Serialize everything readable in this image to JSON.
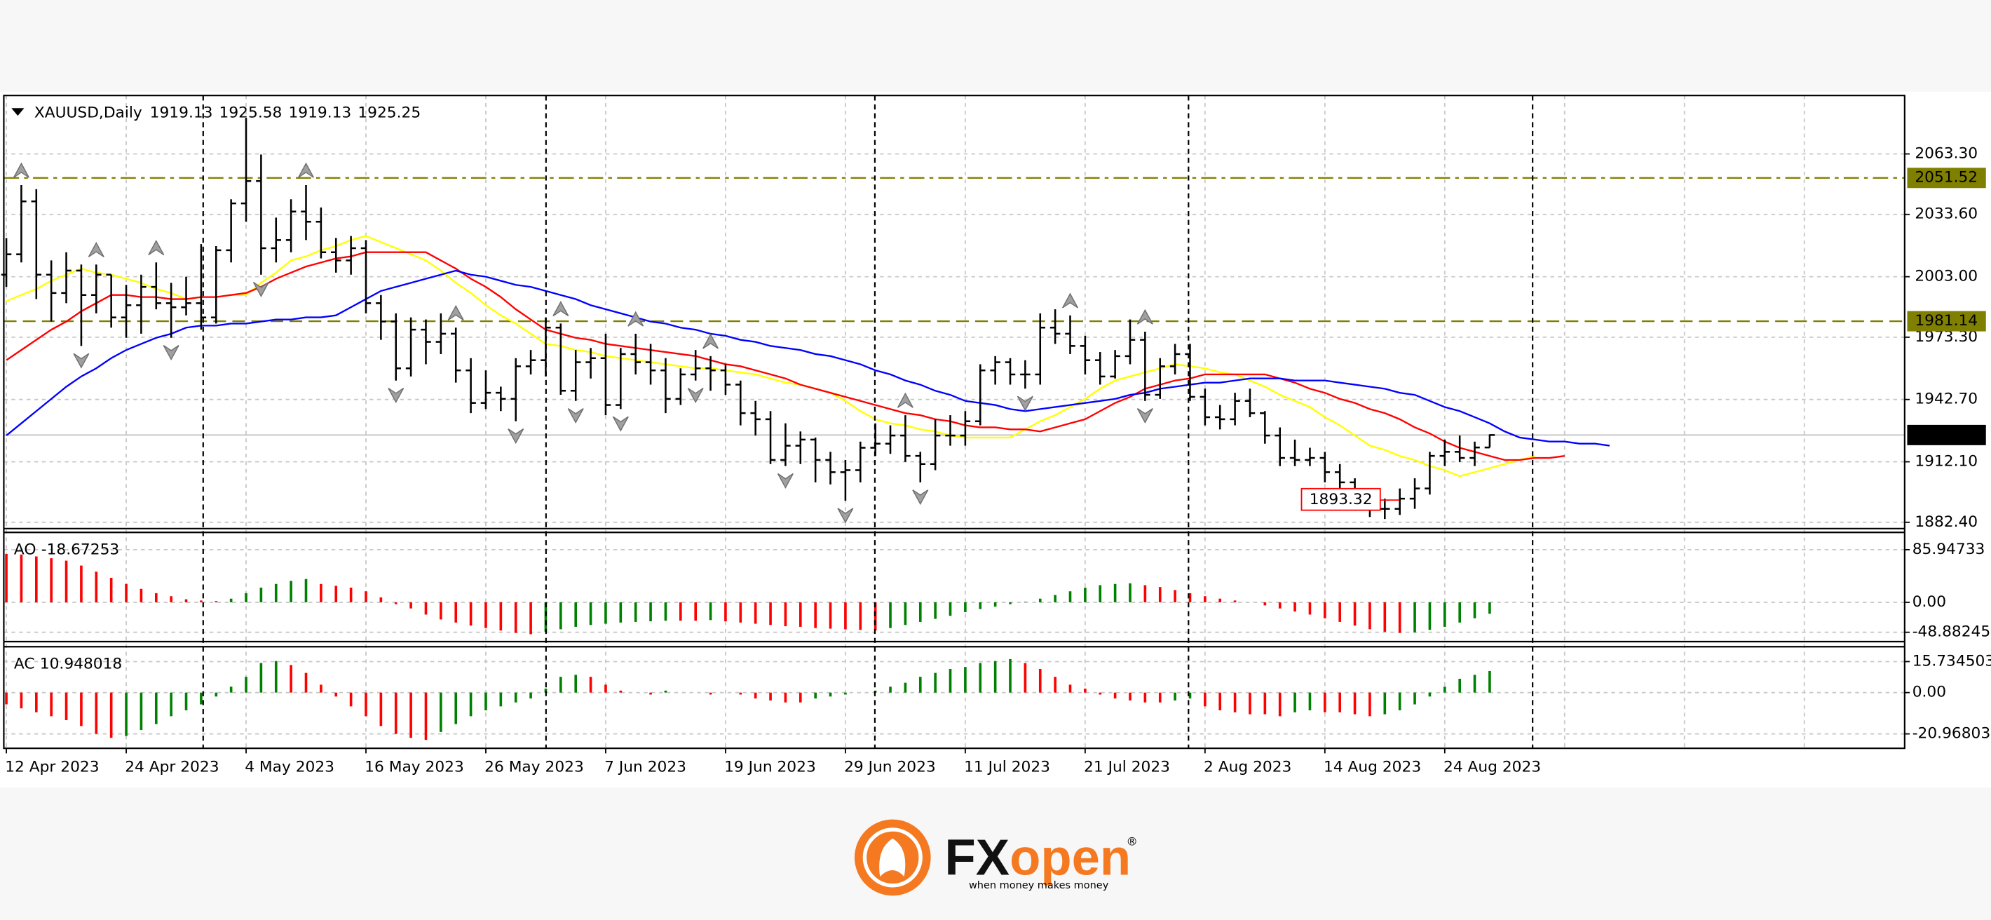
{
  "chart_data": {
    "type": "ohlc",
    "symbol": "XAUUSD,Daily",
    "quote": [
      1919.13,
      1925.58,
      1919.13,
      1925.25
    ],
    "color": "#000000",
    "grid": true,
    "categories": [
      "12 Apr 2023",
      null,
      null,
      null,
      null,
      null,
      null,
      null,
      "24 Apr 2023",
      null,
      null,
      null,
      null,
      null,
      null,
      null,
      "4 May 2023",
      null,
      null,
      null,
      null,
      null,
      null,
      null,
      "16 May 2023",
      null,
      null,
      null,
      null,
      null,
      null,
      null,
      "26 May 2023",
      null,
      null,
      null,
      null,
      null,
      null,
      null,
      "7 Jun 2023",
      null,
      null,
      null,
      null,
      null,
      null,
      null,
      "19 Jun 2023",
      null,
      null,
      null,
      null,
      null,
      null,
      null,
      "29 Jun 2023",
      null,
      null,
      null,
      null,
      null,
      null,
      null,
      "11 Jul 2023",
      null,
      null,
      null,
      null,
      null,
      null,
      null,
      "21 Jul 2023",
      null,
      null,
      null,
      null,
      null,
      null,
      null,
      "2 Aug 2023",
      null,
      null,
      null,
      null,
      null,
      null,
      null,
      "14 Aug 2023",
      null,
      null,
      null,
      null,
      null,
      null,
      null,
      "24 Aug 2023",
      null,
      null,
      null,
      null,
      null,
      null,
      null,
      null,
      null,
      null,
      null
    ],
    "open": [
      2004,
      2014,
      2040,
      2004,
      1995,
      2006,
      1994,
      2004,
      1983,
      1989,
      1998,
      1990,
      1988,
      1990,
      1983,
      2016,
      2039,
      2050,
      2017,
      2021,
      2035,
      2030,
      2015,
      2011,
      2017,
      1990,
      1981,
      1958,
      1977,
      1971,
      1975,
      1957,
      1941,
      1946,
      1943,
      1959,
      1962,
      1978,
      1947,
      1961,
      1963,
      1940,
      1965,
      1961,
      1957,
      1943,
      1955,
      1958,
      1957,
      1950,
      1936,
      1933,
      1913,
      1920,
      1923,
      1913,
      1907,
      1908,
      1919,
      1921,
      1925,
      1915,
      1911,
      1925,
      1925,
      1932,
      1957,
      1961,
      1955,
      1955,
      1978,
      1975,
      1969,
      1962,
      1954,
      1964,
      1972,
      1945,
      1959,
      1965,
      1944,
      1934,
      1933,
      1942,
      1936,
      1925,
      1914,
      1913,
      1914,
      1907,
      1902,
      1891,
      1889,
      1889,
      1894,
      1899,
      1915,
      1917,
      1914,
      1919.13,
      null,
      null,
      null,
      null,
      null,
      null,
      null,
      null
    ],
    "high": [
      2022,
      2048,
      2046,
      2011,
      2015,
      2009,
      2009,
      2004,
      1999,
      2004,
      2010,
      2000,
      2003,
      2019,
      2018,
      2041,
      2081,
      2063,
      2032,
      2041,
      2048,
      2037,
      2022,
      2023,
      2021,
      1994,
      1985,
      1983,
      1982,
      1985,
      1978,
      1963,
      1957,
      1949,
      1963,
      1967,
      1983,
      1980,
      1967,
      1968,
      1975,
      1968,
      1975,
      1970,
      1963,
      1958,
      1967,
      1964,
      1960,
      1952,
      1942,
      1937,
      1931,
      1927,
      1924,
      1917,
      1913,
      1922,
      1931,
      1930,
      1935,
      1917,
      1933,
      1935,
      1937,
      1960,
      1964,
      1963,
      1962,
      1985,
      1987,
      1984,
      1974,
      1966,
      1967,
      1982,
      1976,
      1963,
      1970,
      1970,
      1948,
      1940,
      1946,
      1948,
      1937,
      1929,
      1923,
      1919,
      1917,
      1911,
      1904,
      1897,
      1894,
      1899,
      1904,
      1917,
      1923,
      1925,
      1922,
      1925.58,
      null,
      null,
      null,
      null,
      null,
      null,
      null,
      null
    ],
    "low": [
      1998,
      2010,
      1992,
      1981,
      1990,
      1969,
      1985,
      1978,
      1973,
      1975,
      1987,
      1973,
      1984,
      1977,
      1980,
      2010,
      2030,
      2004,
      2010,
      2015,
      2021,
      2012,
      2005,
      2004,
      1985,
      1972,
      1952,
      1954,
      1960,
      1965,
      1951,
      1936,
      1938,
      1937,
      1932,
      1955,
      1954,
      1945,
      1942,
      1953,
      1935,
      1938,
      1955,
      1950,
      1936,
      1940,
      1952,
      1947,
      1945,
      1930,
      1925,
      1911,
      1910,
      1911,
      1902,
      1901,
      1893,
      1902,
      1915,
      1916,
      1912,
      1902,
      1908,
      1920,
      1920,
      1930,
      1950,
      1950,
      1948,
      1950,
      1970,
      1965,
      1955,
      1950,
      1953,
      1960,
      1942,
      1943,
      1955,
      1942,
      1930,
      1928,
      1930,
      1934,
      1921,
      1910,
      1910,
      1910,
      1902,
      1898,
      1888,
      1885,
      1884,
      1886,
      1889,
      1896,
      1910,
      1912,
      1910,
      1919.13,
      null,
      null,
      null,
      null,
      null,
      null,
      null,
      null
    ],
    "close": [
      2014,
      2040,
      2004,
      1995,
      2006,
      1994,
      2004,
      1983,
      1989,
      1998,
      1990,
      1988,
      1990,
      1983,
      2016,
      2039,
      2050,
      2017,
      2021,
      2035,
      2030,
      2015,
      2011,
      2017,
      1990,
      1981,
      1958,
      1977,
      1971,
      1975,
      1957,
      1941,
      1946,
      1943,
      1959,
      1962,
      1978,
      1947,
      1961,
      1963,
      1940,
      1965,
      1961,
      1957,
      1943,
      1955,
      1958,
      1957,
      1950,
      1936,
      1933,
      1913,
      1920,
      1923,
      1913,
      1907,
      1908,
      1919,
      1921,
      1925,
      1915,
      1911,
      1925,
      1925,
      1932,
      1957,
      1961,
      1955,
      1955,
      1978,
      1975,
      1969,
      1962,
      1954,
      1964,
      1972,
      1945,
      1959,
      1965,
      1944,
      1934,
      1933,
      1942,
      1936,
      1925,
      1914,
      1913,
      1914,
      1907,
      1902,
      1891,
      1889,
      1889,
      1894,
      1899,
      1915,
      1917,
      1914,
      1919.13,
      1925.25,
      null,
      null,
      null,
      null,
      null,
      null,
      null,
      null
    ],
    "series": [
      {
        "color": "#ffff00",
        "values": [
          1991,
          1994,
          1997,
          2001,
          2004,
          2007,
          2005,
          2004,
          2002,
          2000,
          1997,
          1995,
          1992,
          1993,
          1993,
          1994,
          1994,
          2000,
          2005,
          2011,
          2013,
          2016,
          2018,
          2021,
          2023,
          2020,
          2017,
          2014,
          2011,
          2006,
          2000,
          1995,
          1989,
          1984,
          1980,
          1975,
          1970,
          1969,
          1967,
          1966,
          1964,
          1963,
          1962,
          1961,
          1960,
          1959,
          1958,
          1958,
          1957,
          1956,
          1955,
          1953,
          1951,
          1950,
          1948,
          1946,
          1942,
          1937,
          1933,
          1931,
          1930,
          1928,
          1927,
          1925,
          1924,
          1924,
          1924,
          1924,
          1928,
          1932,
          1935,
          1939,
          1943,
          1948,
          1952,
          1954,
          1956,
          1958,
          1960,
          1959,
          1958,
          1956,
          1955,
          1952,
          1949,
          1945,
          1942,
          1939,
          1934,
          1930,
          1925,
          1920,
          1918,
          1915,
          1913,
          1910,
          1908,
          1905,
          1907,
          1909,
          1911,
          1913,
          1915,
          null,
          null,
          null,
          null,
          null
        ]
      },
      {
        "color": "#ff0000",
        "values": [
          1962,
          1967,
          1972,
          1977,
          1981,
          1986,
          1990,
          1994,
          1994,
          1993,
          1993,
          1992,
          1992,
          1993,
          1993,
          1994,
          1995,
          1998,
          2002,
          2005,
          2008,
          2010,
          2012,
          2013,
          2015,
          2015,
          2015,
          2015,
          2015,
          2011,
          2007,
          2002,
          1998,
          1993,
          1987,
          1982,
          1977,
          1975,
          1973,
          1972,
          1970,
          1969,
          1968,
          1967,
          1966,
          1965,
          1964,
          1962,
          1960,
          1959,
          1957,
          1955,
          1953,
          1950,
          1948,
          1946,
          1944,
          1942,
          1940,
          1938,
          1936,
          1935,
          1933,
          1932,
          1930,
          1929,
          1929,
          1928,
          1928,
          1927,
          1929,
          1931,
          1933,
          1937,
          1941,
          1944,
          1948,
          1950,
          1952,
          1953,
          1955,
          1955,
          1955,
          1955,
          1955,
          1953,
          1951,
          1948,
          1946,
          1943,
          1941,
          1938,
          1936,
          1933,
          1929,
          1926,
          1922,
          1919,
          1917,
          1915,
          1913,
          1913,
          1914,
          1914,
          1915,
          null,
          null,
          null
        ]
      },
      {
        "color": "#0000ff",
        "values": [
          1925,
          1931,
          1937,
          1943,
          1949,
          1954,
          1958,
          1963,
          1967,
          1970,
          1973,
          1975,
          1978,
          1979,
          1979,
          1980,
          1980,
          1981,
          1982,
          1982,
          1983,
          1983,
          1984,
          1988,
          1992,
          1996,
          1998,
          2000,
          2002,
          2004,
          2006,
          2004,
          2003,
          2001,
          1999,
          1998,
          1996,
          1994,
          1992,
          1989,
          1987,
          1985,
          1983,
          1981,
          1980,
          1978,
          1977,
          1975,
          1974,
          1972,
          1971,
          1969,
          1968,
          1967,
          1965,
          1964,
          1962,
          1960,
          1957,
          1955,
          1952,
          1950,
          1947,
          1945,
          1942,
          1941,
          1940,
          1938,
          1937,
          1938,
          1939,
          1940,
          1941,
          1942,
          1943,
          1945,
          1946,
          1948,
          1949,
          1950,
          1951,
          1951,
          1952,
          1953,
          1953,
          1953,
          1952,
          1952,
          1952,
          1951,
          1950,
          1949,
          1948,
          1946,
          1945,
          1942,
          1939,
          1937,
          1934,
          1931,
          1927,
          1924,
          1923,
          1922,
          1922,
          1921,
          1921,
          1920
        ]
      }
    ],
    "ylim": [
      1879.3,
      2092
    ],
    "yticks": [
      {
        "value": 2063.3,
        "label": "2063.30"
      },
      {
        "value": 2033.6,
        "label": "2033.60"
      },
      {
        "value": 2003,
        "label": "2003.00"
      },
      {
        "value": 1973.3,
        "label": "1973.30"
      },
      {
        "value": 1942.7,
        "label": "1942.70"
      },
      {
        "value": 1912.1,
        "label": "1912.10"
      },
      {
        "value": 1882.4,
        "label": "1882.40"
      }
    ],
    "levels": [
      {
        "value": 2051.52,
        "color": "#808000",
        "style": "dashdot"
      },
      {
        "value": 1981.14,
        "color": "#808000",
        "style": "dash"
      }
    ],
    "current_price": {
      "value": 1925.25,
      "color": "#c0c0c0"
    },
    "annotation": {
      "value": 1893.32,
      "color": "#ff0000"
    },
    "fractals_up": [
      1,
      6,
      10,
      20,
      30,
      37,
      42,
      47,
      60,
      71,
      76
    ],
    "fractals_down": [
      5,
      11,
      17,
      26,
      34,
      38,
      41,
      46,
      52,
      56,
      61,
      68,
      76
    ],
    "up_color": "#008000",
    "down_color": "#ff0000",
    "indicators": [
      {
        "type": "histogram",
        "name": "AO",
        "value": -18.67253,
        "ylim": [
          -60,
          110
        ],
        "yticks": [
          85.94733,
          {
            "value": 0,
            "label": "0.00"
          },
          -48.88245
        ],
        "values": [
          79,
          78,
          75,
          72,
          68,
          60,
          50,
          40,
          30,
          22,
          15,
          10,
          5,
          3,
          2,
          6,
          15,
          24,
          30,
          35,
          38,
          30,
          27,
          24,
          18,
          8,
          -3,
          -10,
          -20,
          -28,
          -33,
          -38,
          -42,
          -46,
          -50,
          -52,
          -48,
          -44,
          -40,
          -37,
          -35,
          -33,
          -32,
          -31,
          -30,
          -30,
          -30,
          -29,
          -31,
          -33,
          -35,
          -37,
          -39,
          -40,
          -42,
          -43,
          -44,
          -45,
          -46,
          -42,
          -37,
          -32,
          -27,
          -22,
          -16,
          -11,
          -7,
          -3,
          1,
          6,
          12,
          18,
          24,
          28,
          30,
          31,
          28,
          25,
          20,
          15,
          10,
          6,
          3,
          0,
          -5,
          -10,
          -15,
          -20,
          -26,
          -32,
          -38,
          -44,
          -48,
          -50,
          -49,
          -45,
          -40,
          -33,
          -26,
          -18.67253,
          null,
          null,
          null,
          null,
          null,
          null,
          null,
          null
        ]
      },
      {
        "type": "histogram",
        "name": "AC",
        "value": 10.948018,
        "ylim": [
          -27,
          22
        ],
        "yticks": [
          15.734503,
          {
            "value": 0,
            "label": "0.00"
          },
          -20.96803
        ],
        "values": [
          -6,
          -8,
          -10,
          -12,
          -14,
          -17,
          -21,
          -23,
          -22,
          -19,
          -16,
          -12,
          -9,
          -6,
          -2,
          3,
          8,
          15,
          16,
          14,
          10,
          4,
          -2,
          -7,
          -12,
          -17,
          -21,
          -23,
          -24,
          -20,
          -16,
          -12,
          -9,
          -7,
          -5,
          -3,
          2,
          8,
          9,
          8,
          4,
          1,
          0,
          -1,
          1,
          0,
          0,
          -1,
          0,
          -1,
          -3,
          -4,
          -5,
          -5,
          -3,
          -2,
          -1,
          0,
          1,
          3,
          5,
          8,
          10,
          12,
          13,
          15,
          16,
          17,
          15,
          12,
          8,
          4,
          2,
          -1,
          -3,
          -4,
          -5,
          -5,
          -4,
          -3,
          -7,
          -9,
          -10,
          -11,
          -11,
          -12,
          -10,
          -9,
          -10,
          -10,
          -11,
          -12,
          -11,
          -9,
          -6,
          -2,
          3,
          7,
          9,
          10.948018,
          null,
          null,
          null,
          null,
          null,
          null,
          null,
          null
        ]
      }
    ]
  },
  "logo": {
    "mark": "FX",
    "accent": "open",
    "registered": "®",
    "tagline": "when money makes money"
  }
}
